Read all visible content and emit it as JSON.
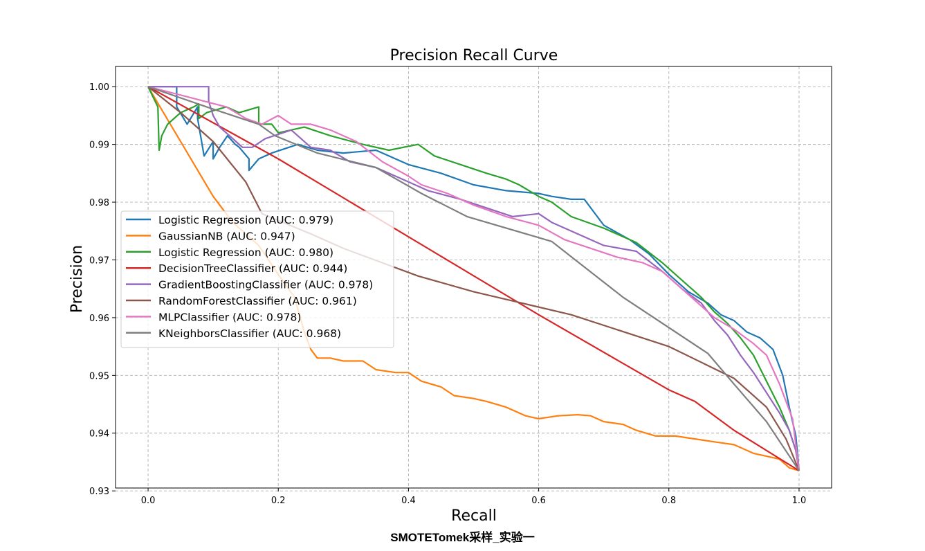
{
  "caption": "SMOTETomek采样_实验一",
  "chart_data": {
    "type": "line",
    "title": "Precision Recall Curve",
    "xlabel": "Recall",
    "ylabel": "Precision",
    "xlim": [
      -0.05,
      1.05
    ],
    "ylim": [
      0.9305,
      1.0035
    ],
    "xticks": [
      0.0,
      0.2,
      0.4,
      0.6,
      0.8,
      1.0
    ],
    "xtick_labels": [
      "0.0",
      "0.2",
      "0.4",
      "0.6",
      "0.8",
      "1.0"
    ],
    "yticks": [
      0.93,
      0.94,
      0.95,
      0.96,
      0.97,
      0.98,
      0.99,
      1.0
    ],
    "ytick_labels": [
      "0.93",
      "0.94",
      "0.95",
      "0.96",
      "0.97",
      "0.98",
      "0.99",
      "1.00"
    ],
    "grid": true,
    "legend_position": "center-left",
    "series": [
      {
        "name": "Logistic Regression (AUC: 0.979)",
        "color": "#1f77b4",
        "points": [
          [
            0,
            1.0
          ],
          [
            0.044,
            1.0
          ],
          [
            0.044,
            0.9965
          ],
          [
            0.06,
            0.9935
          ],
          [
            0.076,
            0.9965
          ],
          [
            0.076,
            0.9945
          ],
          [
            0.086,
            0.988
          ],
          [
            0.1,
            0.9905
          ],
          [
            0.1,
            0.9875
          ],
          [
            0.11,
            0.9895
          ],
          [
            0.122,
            0.9915
          ],
          [
            0.134,
            0.99
          ],
          [
            0.14,
            0.9895
          ],
          [
            0.155,
            0.9875
          ],
          [
            0.155,
            0.9855
          ],
          [
            0.17,
            0.9875
          ],
          [
            0.19,
            0.9885
          ],
          [
            0.23,
            0.99
          ],
          [
            0.26,
            0.989
          ],
          [
            0.3,
            0.9885
          ],
          [
            0.35,
            0.989
          ],
          [
            0.4,
            0.9865
          ],
          [
            0.45,
            0.985
          ],
          [
            0.5,
            0.983
          ],
          [
            0.55,
            0.982
          ],
          [
            0.6,
            0.9815
          ],
          [
            0.62,
            0.981
          ],
          [
            0.65,
            0.9805
          ],
          [
            0.67,
            0.9805
          ],
          [
            0.7,
            0.976
          ],
          [
            0.74,
            0.9735
          ],
          [
            0.77,
            0.971
          ],
          [
            0.8,
            0.9675
          ],
          [
            0.83,
            0.9645
          ],
          [
            0.86,
            0.9625
          ],
          [
            0.88,
            0.9605
          ],
          [
            0.9,
            0.9595
          ],
          [
            0.92,
            0.9575
          ],
          [
            0.94,
            0.9565
          ],
          [
            0.96,
            0.9545
          ],
          [
            0.975,
            0.95
          ],
          [
            0.985,
            0.9445
          ],
          [
            0.995,
            0.9395
          ],
          [
            1.0,
            0.9335
          ]
        ]
      },
      {
        "name": "GaussianNB (AUC: 0.947)",
        "color": "#ff7f0e",
        "points": [
          [
            0,
            1.0
          ],
          [
            0.05,
            0.9905
          ],
          [
            0.1,
            0.981
          ],
          [
            0.13,
            0.9765
          ],
          [
            0.17,
            0.9725
          ],
          [
            0.2,
            0.9675
          ],
          [
            0.225,
            0.9635
          ],
          [
            0.24,
            0.9575
          ],
          [
            0.25,
            0.9545
          ],
          [
            0.26,
            0.953
          ],
          [
            0.28,
            0.953
          ],
          [
            0.3,
            0.9525
          ],
          [
            0.33,
            0.9525
          ],
          [
            0.35,
            0.951
          ],
          [
            0.38,
            0.9505
          ],
          [
            0.4,
            0.9505
          ],
          [
            0.42,
            0.949
          ],
          [
            0.45,
            0.948
          ],
          [
            0.47,
            0.9465
          ],
          [
            0.5,
            0.946
          ],
          [
            0.52,
            0.9455
          ],
          [
            0.55,
            0.9445
          ],
          [
            0.58,
            0.943
          ],
          [
            0.6,
            0.9425
          ],
          [
            0.63,
            0.943
          ],
          [
            0.66,
            0.9432
          ],
          [
            0.68,
            0.943
          ],
          [
            0.7,
            0.942
          ],
          [
            0.73,
            0.9415
          ],
          [
            0.75,
            0.9405
          ],
          [
            0.78,
            0.9395
          ],
          [
            0.81,
            0.9395
          ],
          [
            0.84,
            0.939
          ],
          [
            0.87,
            0.9385
          ],
          [
            0.9,
            0.938
          ],
          [
            0.93,
            0.9365
          ],
          [
            0.95,
            0.936
          ],
          [
            0.97,
            0.9355
          ],
          [
            0.985,
            0.934
          ],
          [
            1.0,
            0.9335
          ]
        ]
      },
      {
        "name": "Logistic Regression (AUC: 0.980)",
        "color": "#2ca02c",
        "points": [
          [
            0,
            1.0
          ],
          [
            0.015,
            0.9965
          ],
          [
            0.017,
            0.989
          ],
          [
            0.021,
            0.9915
          ],
          [
            0.03,
            0.9935
          ],
          [
            0.05,
            0.9955
          ],
          [
            0.07,
            0.9965
          ],
          [
            0.078,
            0.997
          ],
          [
            0.078,
            0.9945
          ],
          [
            0.09,
            0.9955
          ],
          [
            0.12,
            0.9965
          ],
          [
            0.14,
            0.9955
          ],
          [
            0.17,
            0.9965
          ],
          [
            0.17,
            0.9935
          ],
          [
            0.19,
            0.9935
          ],
          [
            0.2,
            0.992
          ],
          [
            0.24,
            0.993
          ],
          [
            0.28,
            0.9915
          ],
          [
            0.33,
            0.99
          ],
          [
            0.37,
            0.989
          ],
          [
            0.415,
            0.99
          ],
          [
            0.44,
            0.988
          ],
          [
            0.48,
            0.9865
          ],
          [
            0.52,
            0.985
          ],
          [
            0.55,
            0.984
          ],
          [
            0.57,
            0.983
          ],
          [
            0.6,
            0.981
          ],
          [
            0.62,
            0.98
          ],
          [
            0.65,
            0.9775
          ],
          [
            0.7,
            0.9755
          ],
          [
            0.75,
            0.973
          ],
          [
            0.79,
            0.9695
          ],
          [
            0.82,
            0.9665
          ],
          [
            0.85,
            0.9635
          ],
          [
            0.87,
            0.961
          ],
          [
            0.89,
            0.959
          ],
          [
            0.91,
            0.9565
          ],
          [
            0.93,
            0.9535
          ],
          [
            0.95,
            0.949
          ],
          [
            0.97,
            0.9445
          ],
          [
            0.985,
            0.9405
          ],
          [
            0.995,
            0.937
          ],
          [
            1.0,
            0.9335
          ]
        ]
      },
      {
        "name": "DecisionTreeClassifier (AUC: 0.944)",
        "color": "#d62728",
        "points": [
          [
            0,
            1.0
          ],
          [
            0.2,
            0.9875
          ],
          [
            0.4,
            0.974
          ],
          [
            0.6,
            0.9605
          ],
          [
            0.8,
            0.9475
          ],
          [
            0.84,
            0.9455
          ],
          [
            0.9,
            0.9405
          ],
          [
            0.95,
            0.937
          ],
          [
            1.0,
            0.9335
          ]
        ]
      },
      {
        "name": "GradientBoostingClassifier (AUC: 0.978)",
        "color": "#9467bd",
        "points": [
          [
            0,
            1.0
          ],
          [
            0.093,
            1.0
          ],
          [
            0.093,
            0.9975
          ],
          [
            0.1,
            0.995
          ],
          [
            0.11,
            0.993
          ],
          [
            0.125,
            0.9915
          ],
          [
            0.135,
            0.9905
          ],
          [
            0.145,
            0.9895
          ],
          [
            0.16,
            0.9895
          ],
          [
            0.18,
            0.991
          ],
          [
            0.22,
            0.9925
          ],
          [
            0.25,
            0.9895
          ],
          [
            0.28,
            0.989
          ],
          [
            0.31,
            0.987
          ],
          [
            0.35,
            0.986
          ],
          [
            0.4,
            0.9835
          ],
          [
            0.43,
            0.982
          ],
          [
            0.48,
            0.9805
          ],
          [
            0.52,
            0.979
          ],
          [
            0.56,
            0.9775
          ],
          [
            0.6,
            0.978
          ],
          [
            0.62,
            0.9765
          ],
          [
            0.65,
            0.975
          ],
          [
            0.7,
            0.9725
          ],
          [
            0.75,
            0.9715
          ],
          [
            0.79,
            0.968
          ],
          [
            0.82,
            0.965
          ],
          [
            0.85,
            0.9625
          ],
          [
            0.87,
            0.9595
          ],
          [
            0.89,
            0.957
          ],
          [
            0.91,
            0.9535
          ],
          [
            0.93,
            0.9505
          ],
          [
            0.95,
            0.947
          ],
          [
            0.97,
            0.9435
          ],
          [
            0.985,
            0.9405
          ],
          [
            0.995,
            0.937
          ],
          [
            1.0,
            0.9335
          ]
        ]
      },
      {
        "name": "RandomForestClassifier (AUC: 0.961)",
        "color": "#8c564b",
        "points": [
          [
            0,
            1.0
          ],
          [
            0.05,
            0.9955
          ],
          [
            0.1,
            0.9905
          ],
          [
            0.15,
            0.9835
          ],
          [
            0.175,
            0.978
          ],
          [
            0.25,
            0.9745
          ],
          [
            0.3,
            0.972
          ],
          [
            0.415,
            0.9672
          ],
          [
            0.5,
            0.9645
          ],
          [
            0.65,
            0.9605
          ],
          [
            0.8,
            0.955
          ],
          [
            0.9,
            0.9495
          ],
          [
            0.95,
            0.9445
          ],
          [
            0.98,
            0.939
          ],
          [
            1.0,
            0.9335
          ]
        ]
      },
      {
        "name": "MLPClassifier (AUC: 0.978)",
        "color": "#e377c2",
        "points": [
          [
            0,
            1.0
          ],
          [
            0.12,
            0.9965
          ],
          [
            0.15,
            0.9945
          ],
          [
            0.175,
            0.9935
          ],
          [
            0.2,
            0.995
          ],
          [
            0.22,
            0.9935
          ],
          [
            0.25,
            0.9935
          ],
          [
            0.28,
            0.9925
          ],
          [
            0.32,
            0.9905
          ],
          [
            0.36,
            0.987
          ],
          [
            0.4,
            0.9845
          ],
          [
            0.42,
            0.983
          ],
          [
            0.46,
            0.9815
          ],
          [
            0.5,
            0.9795
          ],
          [
            0.55,
            0.9775
          ],
          [
            0.6,
            0.976
          ],
          [
            0.64,
            0.9735
          ],
          [
            0.68,
            0.972
          ],
          [
            0.72,
            0.9705
          ],
          [
            0.76,
            0.9695
          ],
          [
            0.79,
            0.968
          ],
          [
            0.82,
            0.965
          ],
          [
            0.85,
            0.962
          ],
          [
            0.87,
            0.96
          ],
          [
            0.9,
            0.958
          ],
          [
            0.93,
            0.9555
          ],
          [
            0.95,
            0.9535
          ],
          [
            0.97,
            0.9485
          ],
          [
            0.99,
            0.9425
          ],
          [
            1.0,
            0.9335
          ]
        ]
      },
      {
        "name": "KNeighborsClassifier (AUC: 0.968)",
        "color": "#7f7f7f",
        "points": [
          [
            0,
            1.0
          ],
          [
            0.09,
            0.9965
          ],
          [
            0.17,
            0.9935
          ],
          [
            0.195,
            0.9915
          ],
          [
            0.26,
            0.9885
          ],
          [
            0.35,
            0.986
          ],
          [
            0.42,
            0.9815
          ],
          [
            0.49,
            0.9775
          ],
          [
            0.62,
            0.9732
          ],
          [
            0.73,
            0.9635
          ],
          [
            0.86,
            0.9538
          ],
          [
            0.9,
            0.9485
          ],
          [
            0.95,
            0.942
          ],
          [
            1.0,
            0.9335
          ]
        ]
      }
    ]
  }
}
